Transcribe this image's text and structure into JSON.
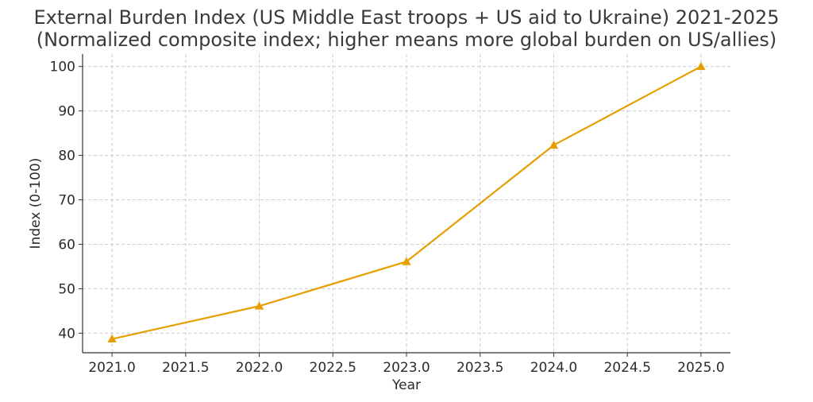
{
  "chart_data": {
    "type": "line",
    "title": "External Burden Index (US Middle East troops + US aid to Ukraine) 2021-2025",
    "subtitle": "(Normalized composite index; higher means more global burden on US/allies)",
    "xlabel": "Year",
    "ylabel": "Index (0-100)",
    "x": [
      2021.0,
      2022.0,
      2023.0,
      2024.0,
      2025.0
    ],
    "series": [
      {
        "values": [
          38.7,
          46.1,
          56.1,
          82.3,
          100.0
        ],
        "color": "#E69F00",
        "marker": "triangle"
      }
    ],
    "xlim": [
      2020.8,
      2025.2
    ],
    "ylim": [
      35.6,
      102.8
    ],
    "xticks": [
      2021.0,
      2021.5,
      2022.0,
      2022.5,
      2023.0,
      2023.5,
      2024.0,
      2024.5,
      2025.0
    ],
    "xtick_labels": [
      "2021.0",
      "2021.5",
      "2022.0",
      "2022.5",
      "2023.0",
      "2023.5",
      "2024.0",
      "2024.5",
      "2025.0"
    ],
    "yticks": [
      40,
      50,
      60,
      70,
      80,
      90,
      100
    ],
    "ytick_labels": [
      "40",
      "50",
      "60",
      "70",
      "80",
      "90",
      "100"
    ],
    "grid": true,
    "legend": "none"
  }
}
